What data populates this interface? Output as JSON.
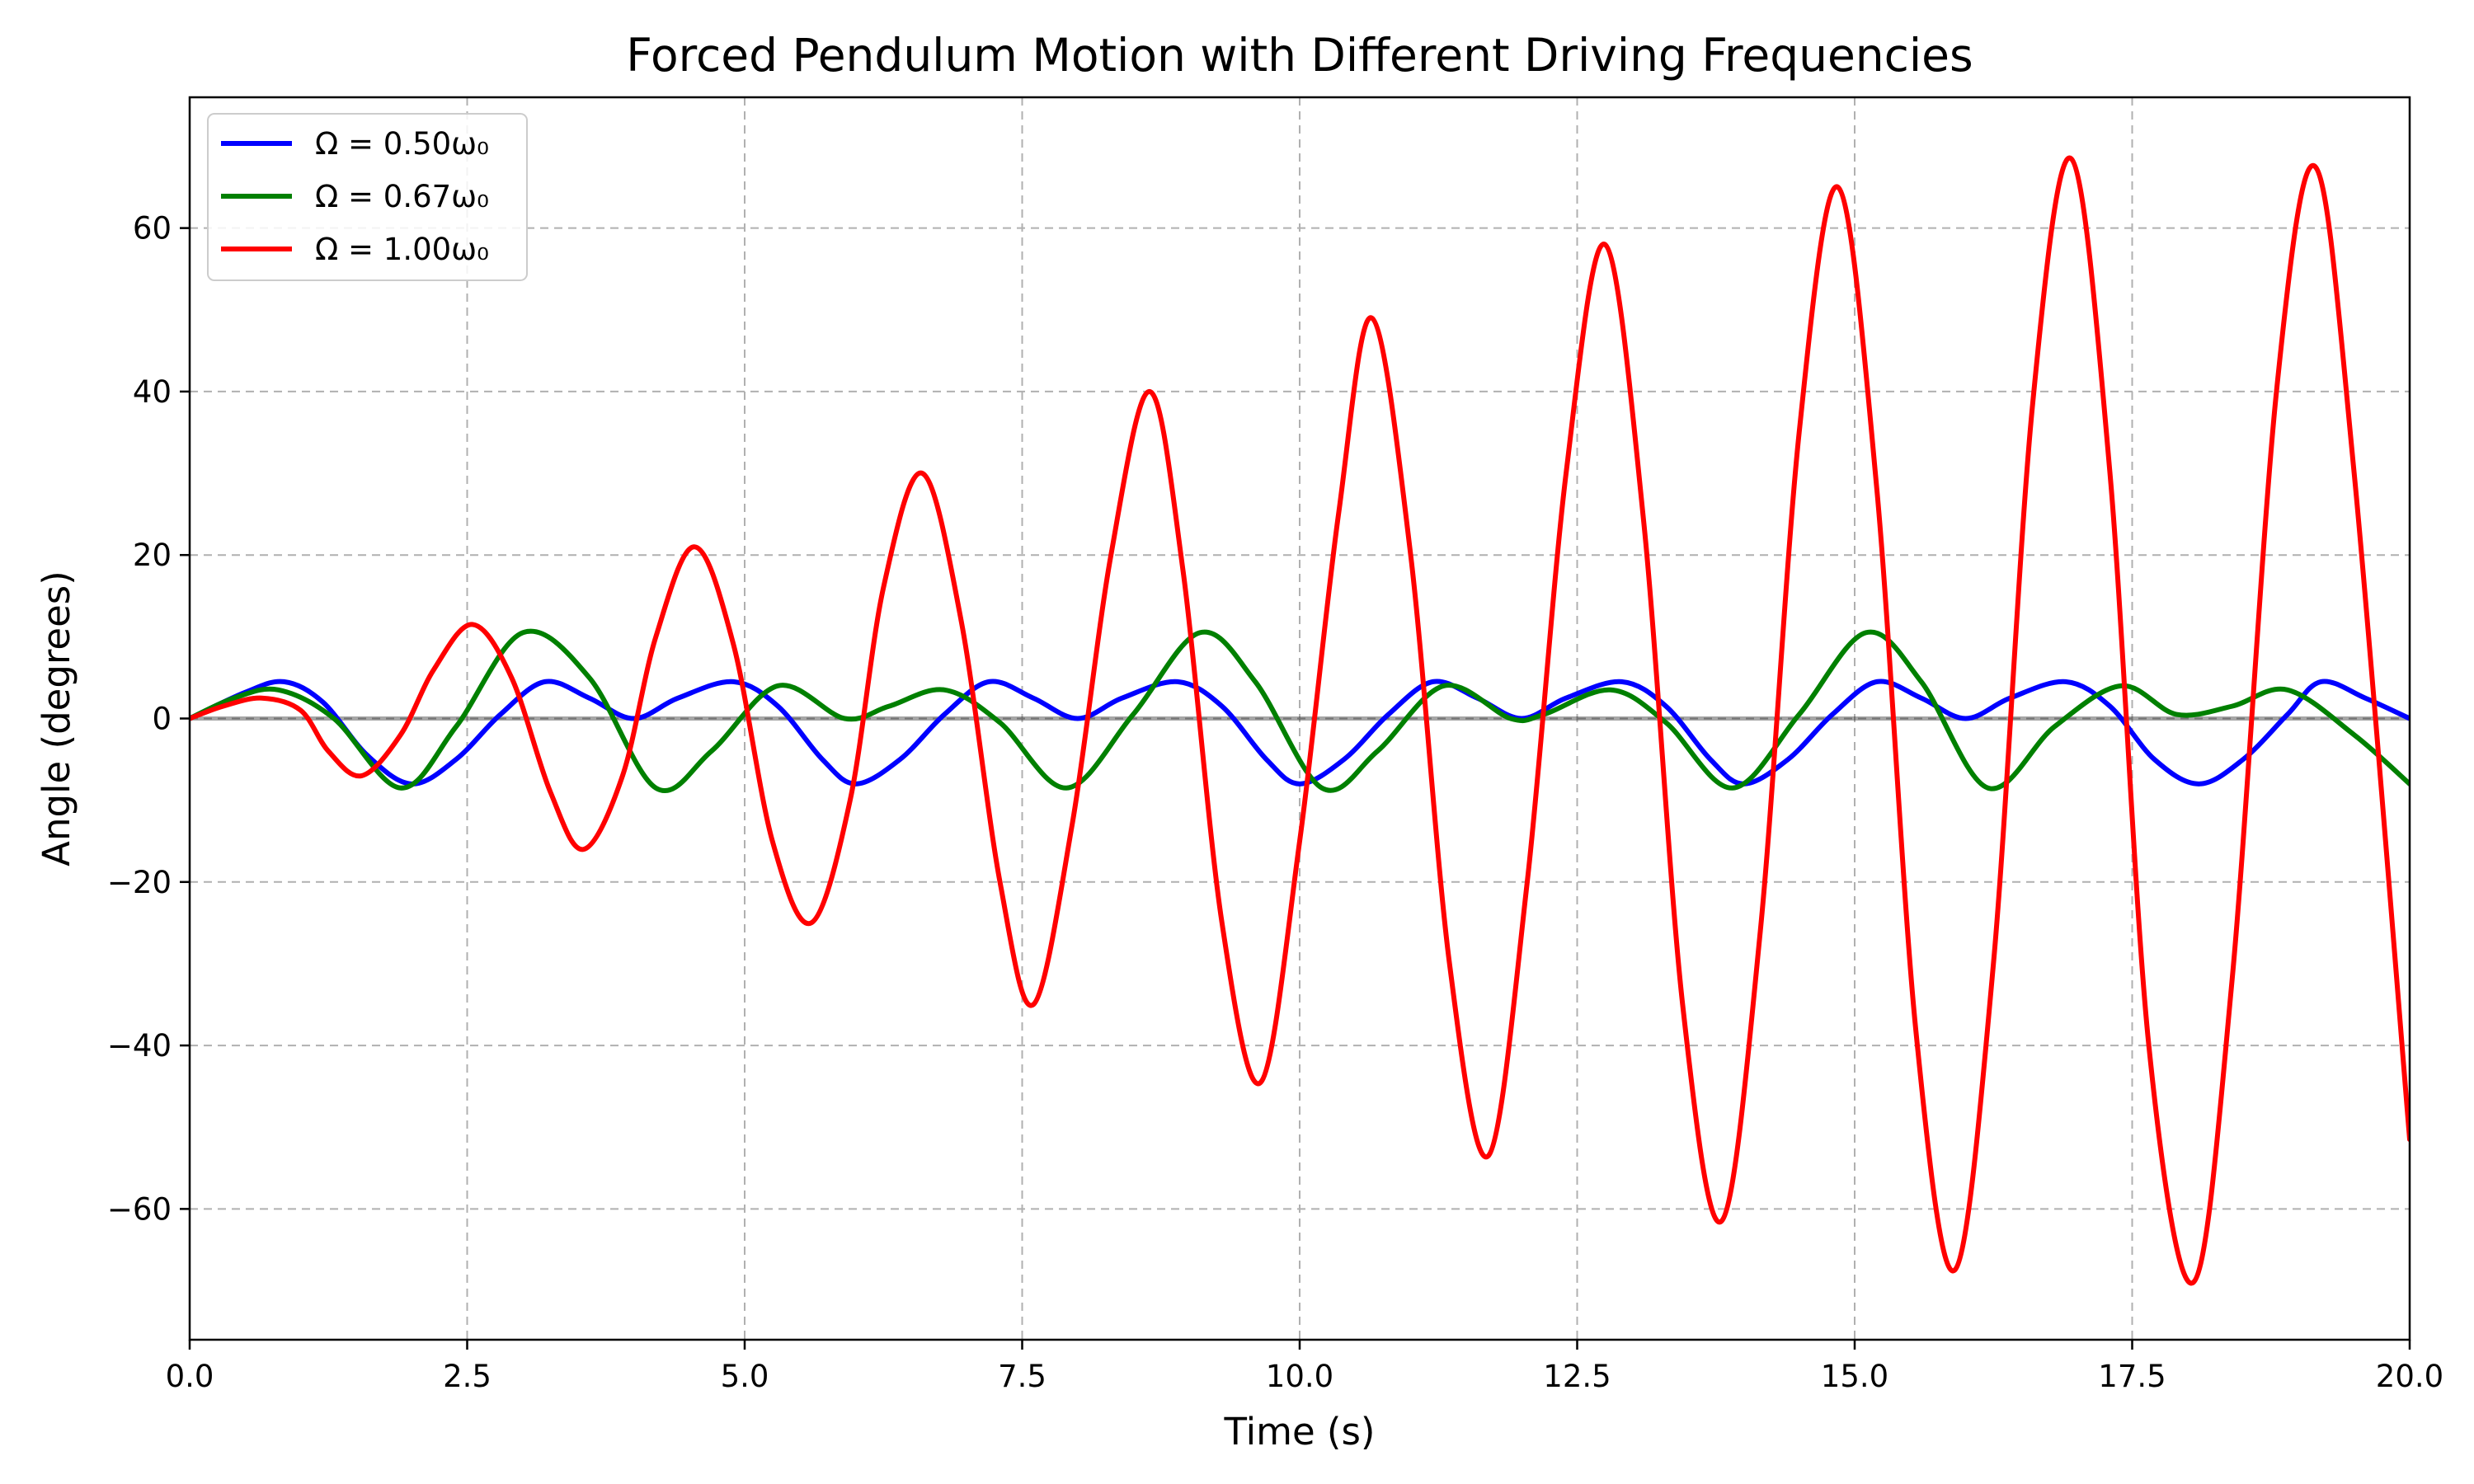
{
  "chart_data": {
    "type": "line",
    "title": "Forced Pendulum Motion with Different Driving Frequencies",
    "xlabel": "Time (s)",
    "ylabel": "Angle (degrees)",
    "xlim": [
      0,
      20
    ],
    "ylim": [
      -76,
      76
    ],
    "xticks": [
      0,
      2.5,
      5,
      7.5,
      10,
      12.5,
      15,
      17.5,
      20
    ],
    "xtick_labels": [
      "0.0",
      "2.5",
      "5.0",
      "7.5",
      "10.0",
      "12.5",
      "15.0",
      "17.5",
      "20.0"
    ],
    "yticks": [
      -60,
      -40,
      -20,
      0,
      20,
      40,
      60
    ],
    "ytick_labels": [
      "−60",
      "−40",
      "−20",
      "0",
      "20",
      "40",
      "60"
    ],
    "grid": true,
    "legend_position": "top-left",
    "zero_line": true,
    "series": [
      {
        "name": "Ω = 0.50ω₀",
        "color": "#0000ff",
        "x": [
          0,
          0.5,
          0.85,
          1.2,
          1.6,
          2.0,
          2.4,
          2.8,
          3.2,
          3.6,
          4.0,
          4.4,
          4.9,
          5.3,
          5.7,
          6.0,
          6.4,
          6.8,
          7.2,
          7.6,
          8.0,
          8.4,
          8.9,
          9.3,
          9.7,
          10.0,
          10.4,
          10.8,
          11.2,
          11.6,
          12.0,
          12.4,
          12.9,
          13.3,
          13.7,
          14.0,
          14.4,
          14.8,
          15.2,
          15.6,
          16.0,
          16.4,
          16.9,
          17.3,
          17.7,
          18.1,
          18.5,
          18.9,
          19.2,
          19.6,
          20.0
        ],
        "values": [
          0,
          3.2,
          4.5,
          2.0,
          -4.5,
          -8.0,
          -5.0,
          0.5,
          4.5,
          2.5,
          0,
          2.5,
          4.5,
          1.5,
          -5.0,
          -8.0,
          -5.0,
          0.5,
          4.5,
          2.5,
          0,
          2.5,
          4.5,
          1.5,
          -5.0,
          -8.0,
          -5.0,
          0.5,
          4.5,
          2.5,
          0,
          2.5,
          4.5,
          1.5,
          -5.0,
          -8.0,
          -5.0,
          0.5,
          4.5,
          2.5,
          0,
          2.5,
          4.5,
          1.5,
          -5.0,
          -8.0,
          -5.0,
          0.5,
          4.5,
          2.5,
          0
        ]
      },
      {
        "name": "Ω = 0.67ω₀",
        "color": "#008000",
        "x": [
          0,
          0.4,
          0.8,
          1.3,
          1.9,
          2.4,
          3.0,
          3.6,
          4.2,
          4.7,
          5.3,
          5.9,
          6.3,
          6.8,
          7.3,
          7.9,
          8.5,
          9.1,
          9.6,
          10.2,
          10.7,
          11.3,
          11.9,
          12.2,
          12.8,
          13.3,
          13.9,
          14.5,
          15.1,
          15.6,
          16.2,
          16.8,
          17.4,
          17.9,
          18.4,
          18.9,
          19.5,
          20.0
        ],
        "values": [
          0,
          2.5,
          3.5,
          0,
          -8.5,
          -1.0,
          10.5,
          5.0,
          -8.5,
          -4.0,
          4.0,
          0,
          1.5,
          3.5,
          -0.5,
          -8.5,
          0.5,
          10.5,
          4.5,
          -8.5,
          -4.0,
          4.0,
          0,
          0.5,
          3.5,
          -0.5,
          -8.5,
          0.5,
          10.5,
          4.5,
          -8.5,
          -1.0,
          4.0,
          0.5,
          1.5,
          3.5,
          -2.0,
          -8.0
        ]
      },
      {
        "name": "Ω = 1.00ω₀",
        "color": "#ff0000",
        "x": [
          0,
          0.3,
          0.65,
          1.0,
          1.25,
          1.55,
          1.9,
          2.2,
          2.55,
          2.9,
          3.25,
          3.55,
          3.9,
          4.2,
          4.55,
          4.9,
          5.25,
          5.6,
          5.95,
          6.25,
          6.6,
          6.95,
          7.3,
          7.6,
          7.95,
          8.3,
          8.65,
          8.95,
          9.3,
          9.65,
          10.0,
          10.35,
          10.65,
          11.0,
          11.35,
          11.7,
          12.05,
          12.4,
          12.75,
          13.1,
          13.45,
          13.8,
          14.15,
          14.5,
          14.85,
          15.2,
          15.55,
          15.9,
          16.25,
          16.6,
          16.95,
          17.3,
          17.65,
          18.05,
          18.4,
          18.8,
          19.15,
          19.5,
          20.0
        ],
        "values": [
          0,
          1.5,
          2.5,
          1.0,
          -4.0,
          -7.0,
          -2.0,
          6.0,
          11.5,
          5.0,
          -9.0,
          -16.0,
          -7.0,
          10.0,
          21.0,
          9.0,
          -15.0,
          -25.0,
          -10.0,
          16.0,
          30.0,
          12.0,
          -20.0,
          -35.0,
          -13.0,
          20.0,
          40.0,
          18.0,
          -25.0,
          -44.5,
          -15.0,
          25.0,
          49.0,
          20.0,
          -30.0,
          -53.5,
          -20.0,
          30.0,
          58.0,
          24.0,
          -35.0,
          -61.5,
          -26.0,
          35.0,
          65.0,
          28.0,
          -38.0,
          -67.5,
          -30.0,
          38.0,
          68.5,
          30.0,
          -40.0,
          -69.0,
          -32.0,
          40.0,
          67.5,
          30.0,
          -51.5
        ]
      }
    ]
  }
}
